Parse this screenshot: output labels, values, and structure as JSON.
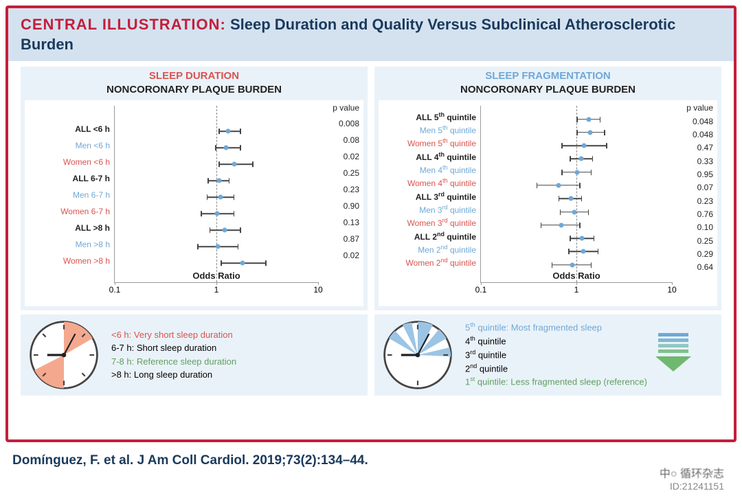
{
  "header_prefix": "CENTRAL ILLUSTRATION:",
  "header_title": "Sleep Duration and Quality Versus Subclinical Atherosclerotic Burden",
  "citation": "Domínguez, F. et al. J Am Coll Cardiol. 2019;73(2):134–44.",
  "watermark_line1": "中○ 循环杂志",
  "watermark_line2": "ID:21241151",
  "xaxis": {
    "label": "Odds Ratio",
    "min": 0.1,
    "max": 10,
    "ticks": [
      0.1,
      1,
      10
    ],
    "scale": "log",
    "ref": 1
  },
  "pvalue_header": "p value",
  "colors": {
    "border": "#c41e3a",
    "header_bg": "#d4e2f0",
    "panel_bg": "#eaf2f9",
    "point": "#6fa8d6",
    "all": "#222222",
    "men": "#6fa8d6",
    "women": "#d9534f",
    "green": "#5fa05f"
  },
  "left": {
    "title1": "SLEEP DURATION",
    "title2": "NONCORONARY PLAQUE BURDEN",
    "rows": [
      {
        "label": "ALL <6 h",
        "cls": "lab-all",
        "or": 1.3,
        "lo": 1.05,
        "hi": 1.75,
        "p": "0.008"
      },
      {
        "label": "Men <6 h",
        "cls": "lab-men",
        "or": 1.25,
        "lo": 0.97,
        "hi": 1.75,
        "p": "0.08"
      },
      {
        "label": "Women <6 h",
        "cls": "lab-women",
        "or": 1.5,
        "lo": 1.05,
        "hi": 2.3,
        "p": "0.02"
      },
      {
        "label": "ALL 6-7 h",
        "cls": "lab-all",
        "or": 1.07,
        "lo": 0.82,
        "hi": 1.35,
        "p": "0.25"
      },
      {
        "label": "Men 6-7 h",
        "cls": "lab-men",
        "or": 1.1,
        "lo": 0.8,
        "hi": 1.5,
        "p": "0.23"
      },
      {
        "label": "Women 6-7 h",
        "cls": "lab-women",
        "or": 1.02,
        "lo": 0.7,
        "hi": 1.5,
        "p": "0.90"
      },
      {
        "label": "ALL >8 h",
        "cls": "lab-all",
        "or": 1.2,
        "lo": 0.85,
        "hi": 1.75,
        "p": "0.13"
      },
      {
        "label": "Men >8 h",
        "cls": "lab-men",
        "or": 1.03,
        "lo": 0.65,
        "hi": 1.65,
        "p": "0.87"
      },
      {
        "label": "Women >8 h",
        "cls": "lab-women",
        "or": 1.8,
        "lo": 1.1,
        "hi": 3.1,
        "p": "0.02"
      }
    ],
    "legend": [
      {
        "text": "<6 h: Very short sleep duration",
        "cls": "l-red"
      },
      {
        "text": "6-7 h: Short sleep duration",
        "cls": ""
      },
      {
        "text": "7-8 h: Reference sleep duration",
        "cls": "l-green"
      },
      {
        "text": ">8 h: Long sleep duration",
        "cls": ""
      }
    ]
  },
  "right": {
    "title1": "SLEEP FRAGMENTATION",
    "title2": "NONCORONARY PLAQUE BURDEN",
    "rows": [
      {
        "label": "ALL 5",
        "sup": "th",
        "tail": " quintile",
        "cls": "lab-all",
        "or": 1.35,
        "lo": 1.0,
        "hi": 1.8,
        "p": "0.048"
      },
      {
        "label": "Men 5",
        "sup": "th",
        "tail": " quintile",
        "cls": "lab-men",
        "or": 1.4,
        "lo": 1.0,
        "hi": 2.0,
        "p": "0.048"
      },
      {
        "label": "Women 5",
        "sup": "th",
        "tail": " quintile",
        "cls": "lab-women",
        "or": 1.2,
        "lo": 0.7,
        "hi": 2.1,
        "p": "0.47"
      },
      {
        "label": "ALL 4",
        "sup": "th",
        "tail": " quintile",
        "cls": "lab-all",
        "or": 1.12,
        "lo": 0.85,
        "hi": 1.5,
        "p": "0.33"
      },
      {
        "label": "Men 4",
        "sup": "th",
        "tail": " quintile",
        "cls": "lab-men",
        "or": 1.02,
        "lo": 0.7,
        "hi": 1.45,
        "p": "0.95"
      },
      {
        "label": "Women 4",
        "sup": "th",
        "tail": " quintile",
        "cls": "lab-women",
        "or": 0.65,
        "lo": 0.38,
        "hi": 1.1,
        "p": "0.07"
      },
      {
        "label": "ALL 3",
        "sup": "rd",
        "tail": " quintile",
        "cls": "lab-all",
        "or": 0.87,
        "lo": 0.65,
        "hi": 1.15,
        "p": "0.23"
      },
      {
        "label": "Men 3",
        "sup": "rd",
        "tail": " quintile",
        "cls": "lab-men",
        "or": 0.95,
        "lo": 0.67,
        "hi": 1.35,
        "p": "0.76"
      },
      {
        "label": "Women 3",
        "sup": "rd",
        "tail": " quintile",
        "cls": "lab-women",
        "or": 0.7,
        "lo": 0.42,
        "hi": 1.1,
        "p": "0.10"
      },
      {
        "label": "ALL 2",
        "sup": "nd",
        "tail": " quintile",
        "cls": "lab-all",
        "or": 1.15,
        "lo": 0.85,
        "hi": 1.55,
        "p": "0.25"
      },
      {
        "label": "Men 2",
        "sup": "nd",
        "tail": " quintile",
        "cls": "lab-men",
        "or": 1.18,
        "lo": 0.82,
        "hi": 1.7,
        "p": "0.29"
      },
      {
        "label": "Women 2",
        "sup": "nd",
        "tail": " quintile",
        "cls": "lab-women",
        "or": 0.9,
        "lo": 0.55,
        "hi": 1.45,
        "p": "0.64"
      }
    ],
    "legend": [
      {
        "pre": "5",
        "sup": "th",
        "text": " quintile: Most fragmented sleep",
        "cls": "l-blue"
      },
      {
        "pre": "4",
        "sup": "th",
        "text": " quintile",
        "cls": ""
      },
      {
        "pre": "3",
        "sup": "rd",
        "text": " quintile",
        "cls": ""
      },
      {
        "pre": "2",
        "sup": "nd",
        "text": " quintile",
        "cls": ""
      },
      {
        "pre": "1",
        "sup": "st",
        "text": " quintile: Less fragmented sleep (reference)",
        "cls": "l-green"
      }
    ]
  }
}
